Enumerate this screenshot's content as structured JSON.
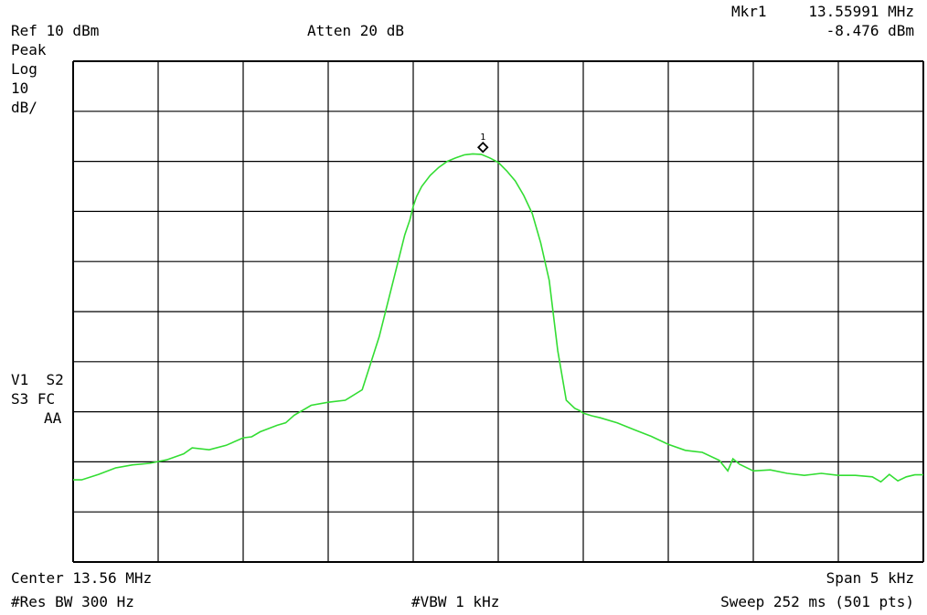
{
  "header": {
    "marker_label": "Mkr1",
    "marker_freq": "13.55991 MHz",
    "marker_amp": "-8.476 dBm",
    "ref_level": "Ref 10 dBm",
    "atten": "Atten 20 dB"
  },
  "left_panel": {
    "detector": "Peak",
    "scale": "Log",
    "scale_value": "10",
    "scale_unit": "dB/",
    "status_line1": "V1  S2",
    "status_line2": "S3 FC",
    "status_line3": "AA"
  },
  "footer": {
    "center": "Center 13.56 MHz",
    "span": "Span 5 kHz",
    "rbw": "#Res BW 300 Hz",
    "vbw": "#VBW 1 kHz",
    "sweep": "Sweep 252 ms (501 pts)"
  },
  "colors": {
    "trace": "#33dd33",
    "grid": "#000000",
    "background": "#ffffff"
  },
  "chart_data": {
    "type": "line",
    "x_unit": "kHz offset from center",
    "y_unit": "dBm",
    "xlim": [
      -2.5,
      2.5
    ],
    "ylim": [
      -90,
      10
    ],
    "grid": true,
    "marker": {
      "label": "1",
      "x": -0.09,
      "y": -8.476
    },
    "series": [
      {
        "values_x": [
          -2.5,
          -2.45,
          -2.35,
          -2.25,
          -2.15,
          -2.05,
          -1.95,
          -1.85,
          -1.8,
          -1.7,
          -1.6,
          -1.5,
          -1.45,
          -1.4,
          -1.3,
          -1.25,
          -1.2,
          -1.1,
          -1.0,
          -0.9,
          -0.8,
          -0.7,
          -0.6,
          -0.55,
          -0.52,
          -0.5,
          -0.48,
          -0.45,
          -0.4,
          -0.35,
          -0.3,
          -0.25,
          -0.2,
          -0.15,
          -0.1,
          -0.05,
          0.0,
          0.05,
          0.1,
          0.15,
          0.2,
          0.25,
          0.3,
          0.35,
          0.4,
          0.45,
          0.48,
          0.5,
          0.55,
          0.6,
          0.7,
          0.8,
          0.9,
          1.0,
          1.1,
          1.2,
          1.3,
          1.35,
          1.38,
          1.42,
          1.5,
          1.6,
          1.7,
          1.8,
          1.9,
          2.0,
          2.1,
          2.2,
          2.25,
          2.3,
          2.35,
          2.4,
          2.45,
          2.5
        ],
        "values_y": [
          -73.6,
          -73.6,
          -72.5,
          -71.2,
          -70.6,
          -70.3,
          -69.6,
          -68.4,
          -67.2,
          -67.6,
          -66.7,
          -65.2,
          -65.0,
          -64.0,
          -62.7,
          -62.2,
          -60.7,
          -58.7,
          -58.1,
          -57.7,
          -55.6,
          -45.0,
          -31.5,
          -24.7,
          -21.7,
          -19.0,
          -17.0,
          -15.0,
          -12.8,
          -11.2,
          -10.0,
          -9.3,
          -8.7,
          -8.5,
          -8.6,
          -9.3,
          -10.2,
          -11.9,
          -13.9,
          -16.8,
          -20.4,
          -26.3,
          -33.8,
          -47.8,
          -57.7,
          -59.3,
          -59.8,
          -60.3,
          -60.8,
          -61.2,
          -62.2,
          -63.6,
          -64.9,
          -66.5,
          -67.7,
          -68.1,
          -69.7,
          -71.8,
          -69.4,
          -70.5,
          -71.8,
          -71.6,
          -72.3,
          -72.7,
          -72.3,
          -72.7,
          -72.7,
          -73.0,
          -74.0,
          -72.5,
          -73.8,
          -73.0,
          -72.6,
          -72.6
        ]
      }
    ]
  }
}
